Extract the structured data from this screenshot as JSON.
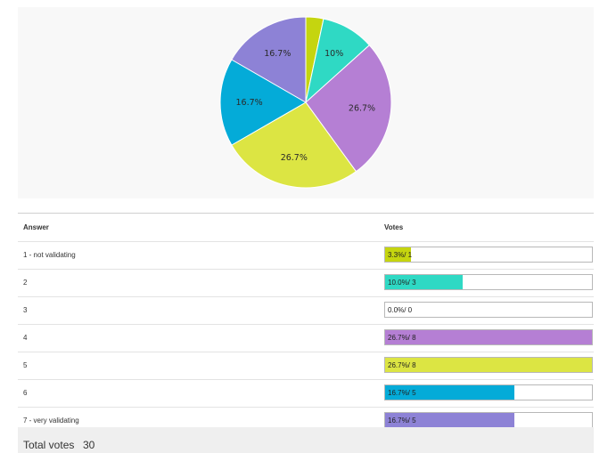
{
  "chart_data": {
    "type": "pie",
    "categories": [
      "1 - not validating",
      "2",
      "3",
      "4",
      "5",
      "6",
      "7 - very validating"
    ],
    "values": [
      1,
      3,
      0,
      8,
      8,
      5,
      5
    ],
    "slice_labels": [
      "",
      "10%",
      "",
      "26.7%",
      "26.7%",
      "16.7%",
      "16.7%"
    ],
    "colors": [
      "#c5d50f",
      "#2fd9c4",
      "#cfcfcf",
      "#b57fd4",
      "#dce543",
      "#04abd8",
      "#8d82d6"
    ]
  },
  "table": {
    "answer_header": "Answer",
    "votes_header": "Votes",
    "rows": [
      {
        "answer": "1 - not validating",
        "votes_text": "3.3%/ 1",
        "fraction": 0.1245,
        "color": "#c5d50f"
      },
      {
        "answer": "2",
        "votes_text": "10.0%/ 3",
        "fraction": 0.375,
        "color": "#2fd9c4"
      },
      {
        "answer": "3",
        "votes_text": "0.0%/ 0",
        "fraction": 0,
        "color": "#cfcfcf"
      },
      {
        "answer": "4",
        "votes_text": "26.7%/ 8",
        "fraction": 1,
        "color": "#b57fd4"
      },
      {
        "answer": "5",
        "votes_text": "26.7%/ 8",
        "fraction": 1,
        "color": "#dce543"
      },
      {
        "answer": "6",
        "votes_text": "16.7%/ 5",
        "fraction": 0.625,
        "color": "#04abd8"
      },
      {
        "answer": "7 - very validating",
        "votes_text": "16.7%/ 5",
        "fraction": 0.625,
        "color": "#8d82d6"
      }
    ]
  },
  "total": {
    "label": "Total votes",
    "value": "30"
  }
}
